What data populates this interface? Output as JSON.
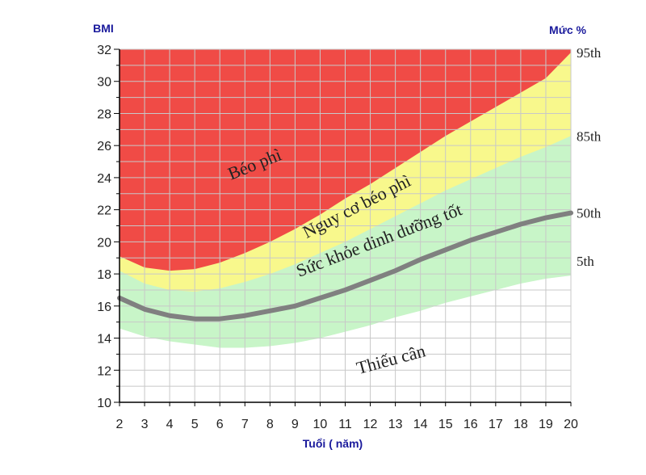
{
  "chart_data": {
    "type": "percentile",
    "y_label": "BMI",
    "y2_label": "Mức %",
    "x_label": "Tuổi ( năm)",
    "x": [
      2,
      3,
      4,
      5,
      6,
      7,
      8,
      9,
      10,
      11,
      12,
      13,
      14,
      15,
      16,
      17,
      18,
      19,
      20
    ],
    "xlim": [
      2,
      20
    ],
    "xticks": [
      2,
      3,
      4,
      5,
      6,
      7,
      8,
      9,
      10,
      11,
      12,
      13,
      14,
      15,
      16,
      17,
      18,
      19,
      20
    ],
    "ylim": [
      10,
      32
    ],
    "yticks": [
      10,
      12,
      14,
      16,
      18,
      20,
      22,
      24,
      26,
      28,
      30,
      32
    ],
    "y_minor_ticks": [
      11,
      13,
      15,
      17,
      19,
      21,
      23,
      25,
      27,
      29,
      31
    ],
    "grid": true,
    "below_color": "#ffffff",
    "series": [
      {
        "name": "5th",
        "style": "band",
        "color": "#c8f5c8",
        "values": [
          14.6,
          14.1,
          13.8,
          13.6,
          13.4,
          13.4,
          13.5,
          13.7,
          14.0,
          14.4,
          14.8,
          15.3,
          15.7,
          16.2,
          16.6,
          17.0,
          17.4,
          17.7,
          17.9
        ]
      },
      {
        "name": "85th",
        "style": "band",
        "color": "#f8f88c",
        "values": [
          18.2,
          17.4,
          17.0,
          16.9,
          17.1,
          17.5,
          18.0,
          18.6,
          19.3,
          20.0,
          20.8,
          21.6,
          22.4,
          23.2,
          23.9,
          24.6,
          25.3,
          25.9,
          26.6
        ]
      },
      {
        "name": "95th",
        "style": "band",
        "color": "#f04b46",
        "values": [
          19.1,
          18.4,
          18.2,
          18.3,
          18.7,
          19.3,
          20.0,
          20.8,
          21.7,
          22.7,
          23.6,
          24.6,
          25.6,
          26.6,
          27.5,
          28.4,
          29.3,
          30.2,
          31.8
        ]
      },
      {
        "name": "50th",
        "style": "line",
        "color": "#808080",
        "values": [
          16.5,
          15.8,
          15.4,
          15.2,
          15.2,
          15.4,
          15.7,
          16.0,
          16.5,
          17.0,
          17.6,
          18.2,
          18.9,
          19.5,
          20.1,
          20.6,
          21.1,
          21.5,
          21.8
        ]
      }
    ],
    "zone_labels": [
      "Béo phì",
      "Nguy cơ béo phì",
      "Sức khỏe dinh dưỡng tốt",
      "Thiếu cân"
    ]
  }
}
